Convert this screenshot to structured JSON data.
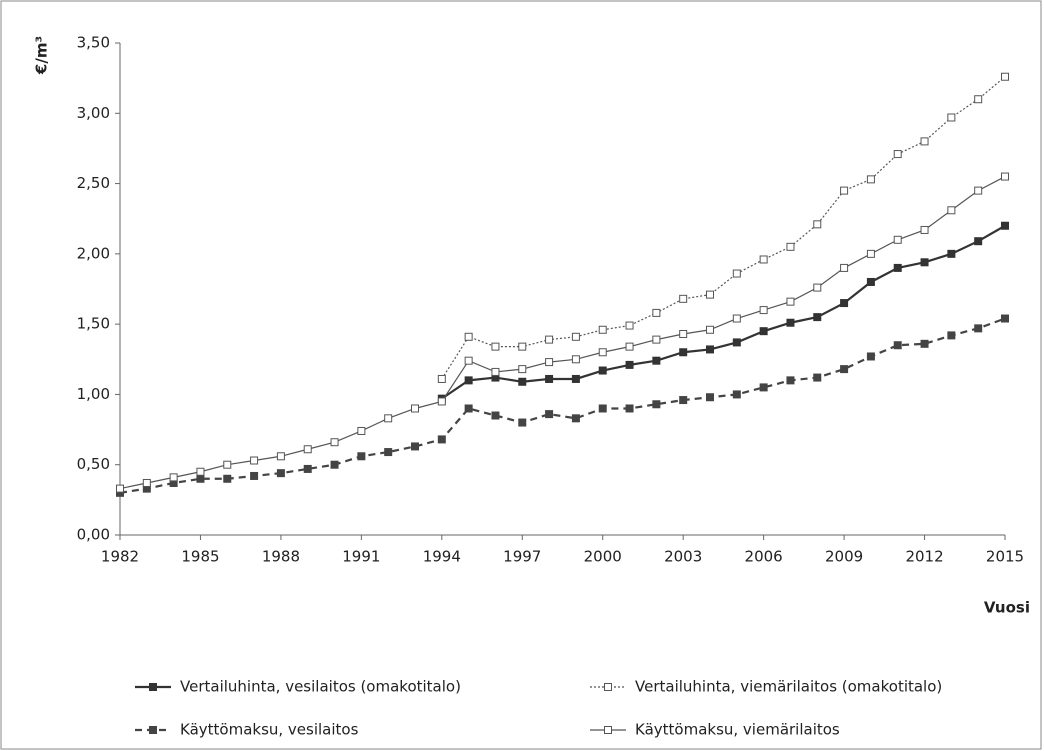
{
  "chart_data": {
    "type": "line",
    "y_label": "€/m³",
    "x_label": "Vuosi",
    "x": [
      1982,
      1983,
      1984,
      1985,
      1986,
      1987,
      1988,
      1989,
      1990,
      1991,
      1992,
      1993,
      1994,
      1995,
      1996,
      1997,
      1998,
      1999,
      2000,
      2001,
      2002,
      2003,
      2004,
      2005,
      2006,
      2007,
      2008,
      2009,
      2010,
      2011,
      2012,
      2013,
      2014,
      2015
    ],
    "xlim": [
      1982,
      2015
    ],
    "xticks": [
      1982,
      1985,
      1988,
      1991,
      1994,
      1997,
      2000,
      2003,
      2006,
      2009,
      2012,
      2015
    ],
    "ylim": [
      0,
      3.5
    ],
    "yticks": [
      {
        "value": 0,
        "label": "0,00"
      },
      {
        "value": 0.5,
        "label": "0,50"
      },
      {
        "value": 1,
        "label": "1,00"
      },
      {
        "value": 1.5,
        "label": "1,50"
      },
      {
        "value": 2,
        "label": "2,00"
      },
      {
        "value": 2.5,
        "label": "2,50"
      },
      {
        "value": 3,
        "label": "3,00"
      },
      {
        "value": 3.5,
        "label": "3,50"
      }
    ],
    "series": [
      {
        "name": "Vertailuhinta, vesilaitos (omakotitalo)",
        "color": "#333333",
        "dash": "solid",
        "marker": "filled",
        "values": [
          null,
          null,
          null,
          null,
          null,
          null,
          null,
          null,
          null,
          null,
          null,
          null,
          0.97,
          1.1,
          1.12,
          1.09,
          1.11,
          1.11,
          1.17,
          1.21,
          1.24,
          1.3,
          1.32,
          1.37,
          1.45,
          1.51,
          1.55,
          1.65,
          1.8,
          1.9,
          1.94,
          2.0,
          2.09,
          2.2
        ]
      },
      {
        "name": "Vertailuhinta, viemärilaitos (omakotitalo)",
        "color": "#555555",
        "dash": "dotted",
        "marker": "hollow",
        "values": [
          null,
          null,
          null,
          null,
          null,
          null,
          null,
          null,
          null,
          null,
          null,
          null,
          1.11,
          1.41,
          1.34,
          1.34,
          1.39,
          1.41,
          1.46,
          1.49,
          1.58,
          1.68,
          1.71,
          1.86,
          1.96,
          2.05,
          2.21,
          2.45,
          2.53,
          2.71,
          2.8,
          2.97,
          3.1,
          3.26
        ]
      },
      {
        "name": "Käyttömaksu, vesilaitos",
        "color": "#444444",
        "dash": "dashed",
        "marker": "filled",
        "values": [
          0.3,
          0.33,
          0.37,
          0.4,
          0.4,
          0.42,
          0.44,
          0.47,
          0.5,
          0.56,
          0.59,
          0.63,
          0.68,
          0.9,
          0.85,
          0.8,
          0.86,
          0.83,
          0.9,
          0.9,
          0.93,
          0.96,
          0.98,
          1.0,
          1.05,
          1.1,
          1.12,
          1.18,
          1.27,
          1.35,
          1.36,
          1.42,
          1.47,
          1.54
        ]
      },
      {
        "name": "Käyttömaksu, viemärilaitos",
        "color": "#555555",
        "dash": "solid",
        "marker": "hollow",
        "values": [
          0.33,
          0.37,
          0.41,
          0.45,
          0.5,
          0.53,
          0.56,
          0.61,
          0.66,
          0.74,
          0.83,
          0.9,
          0.95,
          1.24,
          1.16,
          1.18,
          1.23,
          1.25,
          1.3,
          1.34,
          1.39,
          1.43,
          1.46,
          1.54,
          1.6,
          1.66,
          1.76,
          1.9,
          2.0,
          2.1,
          2.17,
          2.31,
          2.45,
          2.55
        ]
      }
    ]
  }
}
